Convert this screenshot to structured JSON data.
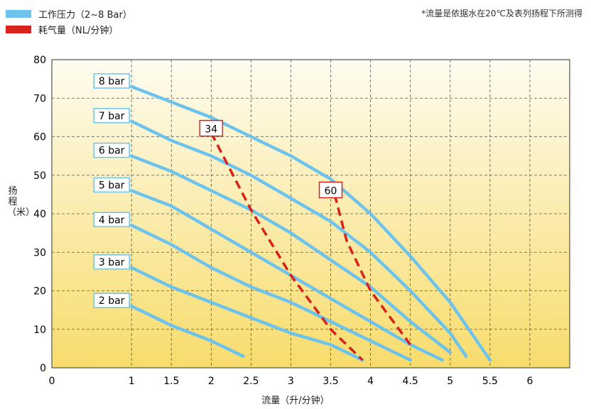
{
  "legend": [
    {
      "label": "工作压力（2~8 Bar）",
      "color": "#6ec3ec"
    },
    {
      "label": "耗气量（NL/分钟）",
      "color": "#d9221c"
    }
  ],
  "note": "*流量是依据水在20℃及表列扬程下所测得",
  "chart_data": {
    "type": "line",
    "xlabel": "流量（升/分钟）",
    "ylabel": "扬程（米）",
    "xlim": [
      0,
      6.5
    ],
    "ylim": [
      0,
      80
    ],
    "x_ticks": [
      "0",
      "1",
      "1.5",
      "2",
      "2.5",
      "3",
      "3.5",
      "4",
      "4.5",
      "5",
      "5.5",
      "6"
    ],
    "x_tick_values": [
      0,
      1,
      1.5,
      2,
      2.5,
      3,
      3.5,
      4,
      4.5,
      5,
      5.5,
      6
    ],
    "y_ticks": [
      0,
      10,
      20,
      30,
      40,
      50,
      60,
      70,
      80
    ],
    "grid": true,
    "series": [
      {
        "name": "2 bar",
        "points": [
          [
            1,
            16
          ],
          [
            1.5,
            11
          ],
          [
            2,
            7
          ],
          [
            2.4,
            3
          ]
        ]
      },
      {
        "name": "3 bar",
        "points": [
          [
            1,
            26
          ],
          [
            1.5,
            21
          ],
          [
            2,
            17
          ],
          [
            2.5,
            13
          ],
          [
            3,
            9
          ],
          [
            3.5,
            6
          ],
          [
            3.9,
            2
          ]
        ]
      },
      {
        "name": "4 bar",
        "points": [
          [
            1,
            37
          ],
          [
            1.5,
            32
          ],
          [
            2,
            26
          ],
          [
            2.5,
            21
          ],
          [
            3,
            17
          ],
          [
            3.5,
            12
          ],
          [
            4,
            7
          ],
          [
            4.5,
            2
          ]
        ]
      },
      {
        "name": "5 bar",
        "points": [
          [
            1,
            46
          ],
          [
            1.5,
            42
          ],
          [
            2,
            36
          ],
          [
            2.5,
            30
          ],
          [
            3,
            24
          ],
          [
            3.5,
            18
          ],
          [
            4,
            12
          ],
          [
            4.5,
            6
          ],
          [
            4.9,
            2
          ]
        ]
      },
      {
        "name": "6 bar",
        "points": [
          [
            1,
            55
          ],
          [
            1.5,
            51
          ],
          [
            2,
            46
          ],
          [
            2.5,
            41
          ],
          [
            3,
            35
          ],
          [
            3.5,
            28
          ],
          [
            4,
            21
          ],
          [
            4.5,
            12
          ],
          [
            5,
            4
          ]
        ]
      },
      {
        "name": "7 bar",
        "points": [
          [
            1,
            64
          ],
          [
            1.5,
            59
          ],
          [
            2,
            55
          ],
          [
            2.5,
            50
          ],
          [
            3,
            44
          ],
          [
            3.5,
            38
          ],
          [
            4,
            30
          ],
          [
            4.5,
            20
          ],
          [
            5,
            9
          ],
          [
            5.2,
            3
          ]
        ]
      },
      {
        "name": "8 bar",
        "points": [
          [
            1,
            73
          ],
          [
            1.5,
            69
          ],
          [
            2,
            65
          ],
          [
            2.5,
            60
          ],
          [
            3,
            55
          ],
          [
            3.5,
            49
          ],
          [
            4,
            40
          ],
          [
            4.5,
            29
          ],
          [
            5,
            17
          ],
          [
            5.5,
            2
          ]
        ]
      }
    ],
    "air_consumption": [
      {
        "label": "34",
        "anchor": [
          2,
          62
        ],
        "points": [
          [
            2,
            61
          ],
          [
            2.5,
            41
          ],
          [
            3,
            24
          ],
          [
            3.5,
            10
          ],
          [
            3.9,
            2
          ]
        ]
      },
      {
        "label": "60",
        "anchor": [
          3.5,
          46
        ],
        "points": [
          [
            3.55,
            45
          ],
          [
            3.7,
            33
          ],
          [
            4,
            20
          ],
          [
            4.5,
            6
          ]
        ]
      }
    ]
  }
}
